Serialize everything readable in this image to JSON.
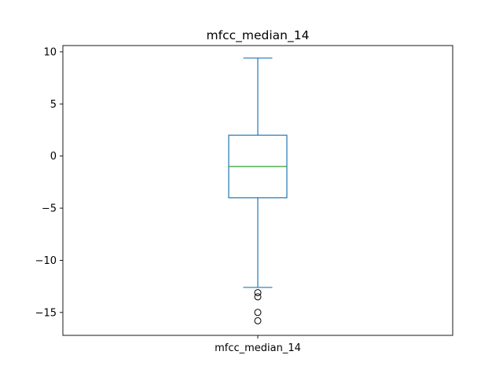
{
  "chart_data": {
    "type": "box",
    "title": "mfcc_median_14",
    "categories": [
      "mfcc_median_14"
    ],
    "ylim": [
      -17.2,
      10.6
    ],
    "yticks": [
      10,
      5,
      0,
      -5,
      -10,
      -15
    ],
    "ytick_labels": [
      "10",
      "5",
      "0",
      "−5",
      "−10",
      "−15"
    ],
    "grid": false,
    "legend": "none",
    "boxes": [
      {
        "name": "mfcc_median_14",
        "whisker_high": 9.4,
        "q3": 2.0,
        "median": -1.0,
        "q1": -4.0,
        "whisker_low": -12.6,
        "outliers": [
          -13.1,
          -13.5,
          -15.0,
          -15.8
        ]
      }
    ],
    "colors": {
      "box": "#1f77b4",
      "median": "#2ca02c",
      "axes": "#000000",
      "outlier": "#000000"
    }
  }
}
